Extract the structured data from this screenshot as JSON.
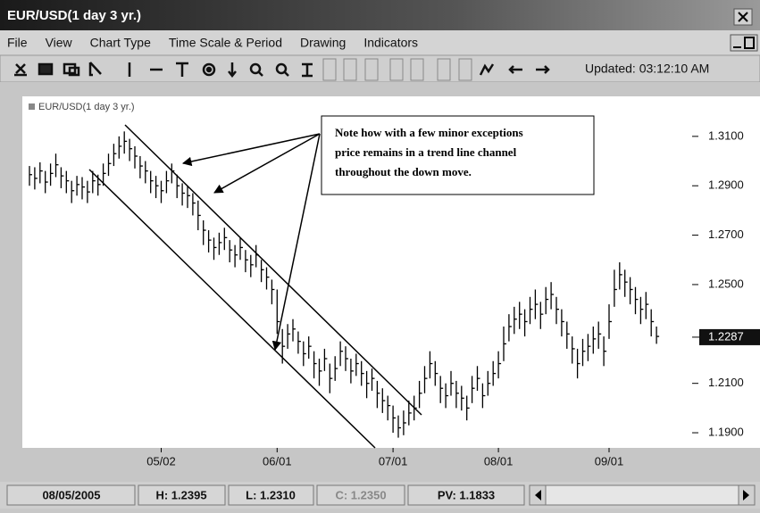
{
  "window": {
    "title": "EUR/USD(1 day 3 yr.)"
  },
  "menu": [
    "File",
    "View",
    "Chart Type",
    "Time Scale & Period",
    "Drawing",
    "Indicators"
  ],
  "toolbar": {
    "updated": "Updated: 03:12:10 AM"
  },
  "chart_data": {
    "type": "ohlc",
    "legend": "EUR/USD(1 day 3 yr.)",
    "annotation": [
      "Note how with a few minor exceptions",
      "price remains in a trend  line channel",
      "throughout the down move."
    ],
    "last_price": {
      "value": 1.2287,
      "label": "1.2287"
    },
    "ylim": [
      1.1846,
      1.3262
    ],
    "yticks": [
      {
        "value": 1.31,
        "label": "1.3100"
      },
      {
        "value": 1.29,
        "label": "1.2900"
      },
      {
        "value": 1.27,
        "label": "1.2700"
      },
      {
        "value": 1.25,
        "label": "1.2500"
      },
      {
        "value": 1.21,
        "label": "1.2100"
      },
      {
        "value": 1.19,
        "label": "1.1900"
      }
    ],
    "categories": [
      null,
      null,
      null,
      null,
      null,
      null,
      null,
      null,
      null,
      null,
      null,
      null,
      null,
      null,
      null,
      null,
      null,
      null,
      null,
      null,
      null,
      null,
      null,
      null,
      null,
      "05/02",
      null,
      null,
      null,
      null,
      null,
      null,
      null,
      null,
      null,
      null,
      null,
      null,
      null,
      null,
      null,
      null,
      null,
      null,
      null,
      null,
      null,
      "06/01",
      null,
      null,
      null,
      null,
      null,
      null,
      null,
      null,
      null,
      null,
      null,
      null,
      null,
      null,
      null,
      null,
      null,
      null,
      null,
      null,
      null,
      "07/01",
      null,
      null,
      null,
      null,
      null,
      null,
      null,
      null,
      null,
      null,
      null,
      null,
      null,
      null,
      null,
      null,
      null,
      null,
      null,
      "08/01",
      null,
      null,
      null,
      null,
      null,
      null,
      null,
      null,
      null,
      null,
      null,
      null,
      null,
      null,
      null,
      null,
      null,
      null,
      null,
      null,
      "09/01",
      null,
      null,
      null,
      null,
      null,
      null,
      null,
      null,
      null
    ],
    "color": "#000000",
    "series": [
      {
        "name": "High",
        "values": [
          1.298,
          1.2975,
          1.2995,
          1.296,
          1.299,
          1.303,
          1.2975,
          1.296,
          1.292,
          1.294,
          1.2935,
          1.292,
          1.296,
          1.2945,
          1.299,
          1.303,
          1.307,
          1.31,
          1.312,
          1.309,
          1.306,
          1.302,
          1.3,
          1.296,
          1.294,
          1.292,
          1.296,
          1.299,
          1.2945,
          1.291,
          1.29,
          1.287,
          1.284,
          1.276,
          1.272,
          1.269,
          1.271,
          1.273,
          1.268,
          1.266,
          1.269,
          1.264,
          1.262,
          1.266,
          1.26,
          1.257,
          1.252,
          1.248,
          1.232,
          1.234,
          1.236,
          1.231,
          1.227,
          1.229,
          1.223,
          1.22,
          1.224,
          1.218,
          1.221,
          1.227,
          1.225,
          1.22,
          1.222,
          1.219,
          1.215,
          1.216,
          1.211,
          1.208,
          1.205,
          1.201,
          1.197,
          1.199,
          1.203,
          1.205,
          1.211,
          1.217,
          1.223,
          1.219,
          1.213,
          1.21,
          1.215,
          1.211,
          1.209,
          1.205,
          1.213,
          1.217,
          1.21,
          1.215,
          1.219,
          1.223,
          1.233,
          1.238,
          1.241,
          1.243,
          1.24,
          1.245,
          1.248,
          1.243,
          1.249,
          1.251,
          1.245,
          1.24,
          1.235,
          1.229,
          1.224,
          1.228,
          1.23,
          1.233,
          1.235,
          1.229,
          1.242,
          1.256,
          1.259,
          1.256,
          1.253,
          1.249,
          1.245,
          1.247,
          1.24,
          1.233
        ]
      },
      {
        "name": "Low",
        "values": [
          1.29,
          1.2885,
          1.291,
          1.287,
          1.29,
          1.2935,
          1.289,
          1.287,
          1.283,
          1.286,
          1.2845,
          1.283,
          1.287,
          1.286,
          1.29,
          1.294,
          1.298,
          1.301,
          1.303,
          1.3,
          1.297,
          1.293,
          1.291,
          1.287,
          1.285,
          1.283,
          1.287,
          1.291,
          1.285,
          1.282,
          1.281,
          1.278,
          1.272,
          1.266,
          1.263,
          1.26,
          1.262,
          1.264,
          1.259,
          1.257,
          1.26,
          1.255,
          1.253,
          1.257,
          1.251,
          1.248,
          1.242,
          1.23,
          1.218,
          1.224,
          1.227,
          1.222,
          1.217,
          1.22,
          1.212,
          1.209,
          1.215,
          1.206,
          1.211,
          1.217,
          1.215,
          1.21,
          1.213,
          1.209,
          1.204,
          1.207,
          1.2,
          1.198,
          1.195,
          1.19,
          1.188,
          1.189,
          1.193,
          1.195,
          1.2,
          1.206,
          1.212,
          1.209,
          1.202,
          1.2,
          1.205,
          1.2,
          1.199,
          1.195,
          1.202,
          1.207,
          1.2,
          1.205,
          1.209,
          1.212,
          1.219,
          1.227,
          1.23,
          1.232,
          1.229,
          1.234,
          1.236,
          1.232,
          1.238,
          1.24,
          1.234,
          1.229,
          1.224,
          1.218,
          1.212,
          1.217,
          1.219,
          1.222,
          1.224,
          1.217,
          1.228,
          1.241,
          1.248,
          1.245,
          1.242,
          1.238,
          1.234,
          1.236,
          1.229,
          1.226
        ]
      },
      {
        "name": "Close",
        "values": [
          1.2945,
          1.293,
          1.296,
          1.2915,
          1.295,
          1.2985,
          1.294,
          1.292,
          1.288,
          1.2905,
          1.2895,
          1.2875,
          1.292,
          1.2905,
          1.295,
          1.299,
          1.303,
          1.306,
          1.308,
          1.305,
          1.302,
          1.298,
          1.296,
          1.292,
          1.29,
          1.288,
          1.292,
          1.296,
          1.29,
          1.287,
          1.286,
          1.283,
          1.278,
          1.272,
          1.268,
          1.265,
          1.267,
          1.269,
          1.264,
          1.262,
          1.265,
          1.26,
          1.258,
          1.262,
          1.256,
          1.253,
          1.248,
          1.235,
          1.225,
          1.23,
          1.232,
          1.227,
          1.222,
          1.225,
          1.218,
          1.215,
          1.22,
          1.212,
          1.216,
          1.223,
          1.22,
          1.215,
          1.218,
          1.214,
          1.21,
          1.212,
          1.206,
          1.203,
          1.201,
          1.196,
          1.192,
          1.194,
          1.198,
          1.2,
          1.206,
          1.212,
          1.218,
          1.214,
          1.208,
          1.205,
          1.21,
          1.206,
          1.204,
          1.2,
          1.208,
          1.212,
          1.205,
          1.21,
          1.214,
          1.218,
          1.226,
          1.233,
          1.236,
          1.238,
          1.235,
          1.24,
          1.242,
          1.238,
          1.244,
          1.246,
          1.24,
          1.235,
          1.23,
          1.224,
          1.218,
          1.223,
          1.225,
          1.228,
          1.23,
          1.223,
          1.235,
          1.248,
          1.254,
          1.251,
          1.248,
          1.244,
          1.24,
          1.242,
          1.235,
          1.229
        ]
      }
    ]
  },
  "status": {
    "date": "08/05/2005",
    "high": "H: 1.2395",
    "low": "L: 1.2310",
    "close": "C: 1.2350",
    "pv": "PV: 1.1833"
  }
}
